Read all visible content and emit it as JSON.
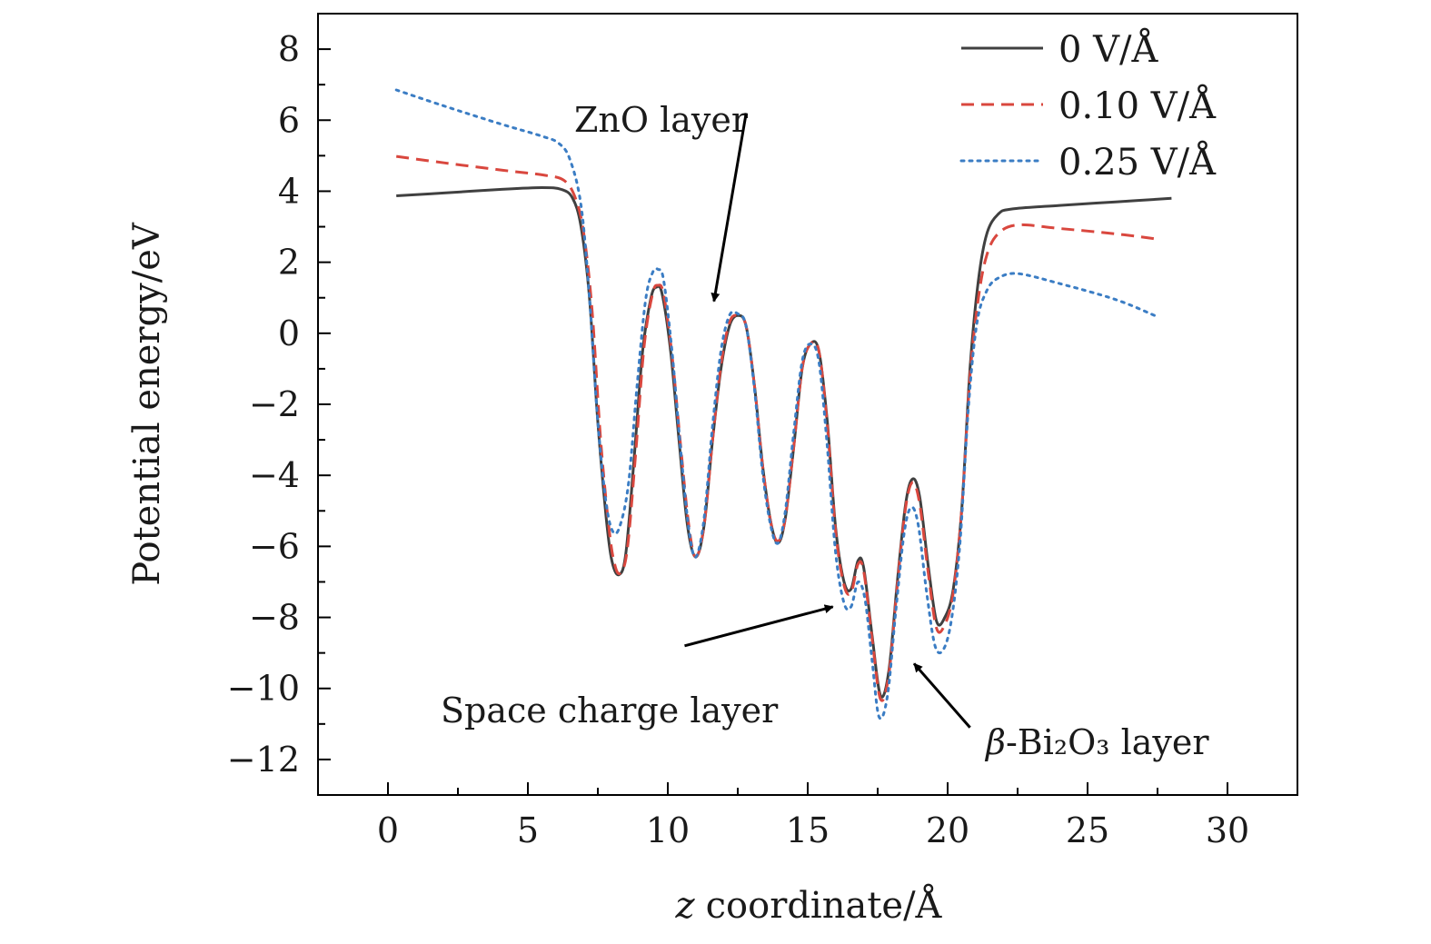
{
  "chart_data": {
    "type": "line",
    "xlabel": "coordinate/Å",
    "xlabel_italic_prefix": "z",
    "ylabel": "Potential energy/eV",
    "xlim": [
      -2.5,
      32.5
    ],
    "ylim": [
      -13,
      9
    ],
    "xticks": [
      0,
      5,
      10,
      15,
      20,
      25,
      30
    ],
    "yticks": [
      8,
      6,
      4,
      2,
      0,
      -2,
      -4,
      -6,
      -8,
      -10,
      -12
    ],
    "ytick_labels": [
      "8",
      "6",
      "4",
      "2",
      "0",
      "−2",
      "−4",
      "−6",
      "−8",
      "−10",
      "−12"
    ],
    "legend_position": "top-right",
    "series": [
      {
        "name": "0 V/Å",
        "color": "#404040",
        "dash": "solid",
        "points": [
          [
            0.3,
            3.87
          ],
          [
            2,
            3.95
          ],
          [
            4,
            4.05
          ],
          [
            5.5,
            4.1
          ],
          [
            6.2,
            4.05
          ],
          [
            6.6,
            3.8
          ],
          [
            6.9,
            3.0
          ],
          [
            7.2,
            1.0
          ],
          [
            7.5,
            -2.5
          ],
          [
            7.8,
            -5.2
          ],
          [
            8.0,
            -6.4
          ],
          [
            8.25,
            -6.8
          ],
          [
            8.5,
            -6.2
          ],
          [
            8.8,
            -3.5
          ],
          [
            9.1,
            -0.5
          ],
          [
            9.4,
            1.0
          ],
          [
            9.6,
            1.3
          ],
          [
            9.8,
            1.1
          ],
          [
            10.1,
            -0.5
          ],
          [
            10.4,
            -3.0
          ],
          [
            10.7,
            -5.4
          ],
          [
            11.0,
            -6.3
          ],
          [
            11.3,
            -5.4
          ],
          [
            11.6,
            -3.0
          ],
          [
            11.9,
            -1.0
          ],
          [
            12.2,
            0.2
          ],
          [
            12.5,
            0.5
          ],
          [
            12.8,
            0.2
          ],
          [
            13.1,
            -1.5
          ],
          [
            13.4,
            -3.8
          ],
          [
            13.7,
            -5.4
          ],
          [
            13.95,
            -5.9
          ],
          [
            14.2,
            -5.2
          ],
          [
            14.5,
            -3.2
          ],
          [
            14.8,
            -1.0
          ],
          [
            15.1,
            -0.3
          ],
          [
            15.4,
            -0.5
          ],
          [
            15.7,
            -2.5
          ],
          [
            16.0,
            -5.5
          ],
          [
            16.3,
            -7.0
          ],
          [
            16.55,
            -7.2
          ],
          [
            16.8,
            -6.4
          ],
          [
            17.0,
            -6.6
          ],
          [
            17.3,
            -8.5
          ],
          [
            17.6,
            -10.2
          ],
          [
            17.9,
            -9.5
          ],
          [
            18.2,
            -7.0
          ],
          [
            18.5,
            -4.8
          ],
          [
            18.75,
            -4.1
          ],
          [
            19.0,
            -4.6
          ],
          [
            19.3,
            -6.5
          ],
          [
            19.6,
            -8.1
          ],
          [
            19.9,
            -8.0
          ],
          [
            20.2,
            -7.2
          ],
          [
            20.5,
            -5.0
          ],
          [
            20.8,
            -1.0
          ],
          [
            21.1,
            1.5
          ],
          [
            21.4,
            2.8
          ],
          [
            21.8,
            3.35
          ],
          [
            22.3,
            3.5
          ],
          [
            24,
            3.6
          ],
          [
            26,
            3.7
          ],
          [
            28,
            3.8
          ]
        ]
      },
      {
        "name": "0.10 V/Å",
        "color": "#d9473e",
        "dash": "dashed",
        "points": [
          [
            0.3,
            4.98
          ],
          [
            2,
            4.8
          ],
          [
            4,
            4.6
          ],
          [
            5.6,
            4.45
          ],
          [
            6.3,
            4.3
          ],
          [
            6.7,
            3.8
          ],
          [
            7.0,
            2.8
          ],
          [
            7.3,
            0.6
          ],
          [
            7.6,
            -3.0
          ],
          [
            7.9,
            -5.5
          ],
          [
            8.1,
            -6.5
          ],
          [
            8.3,
            -6.75
          ],
          [
            8.55,
            -6.1
          ],
          [
            8.85,
            -3.4
          ],
          [
            9.15,
            -0.4
          ],
          [
            9.45,
            1.1
          ],
          [
            9.65,
            1.35
          ],
          [
            9.85,
            1.1
          ],
          [
            10.15,
            -0.6
          ],
          [
            10.45,
            -3.1
          ],
          [
            10.75,
            -5.4
          ],
          [
            11.0,
            -6.3
          ],
          [
            11.3,
            -5.4
          ],
          [
            11.6,
            -3.0
          ],
          [
            11.9,
            -0.9
          ],
          [
            12.2,
            0.3
          ],
          [
            12.5,
            0.5
          ],
          [
            12.8,
            0.2
          ],
          [
            13.1,
            -1.5
          ],
          [
            13.4,
            -3.8
          ],
          [
            13.7,
            -5.4
          ],
          [
            13.95,
            -5.85
          ],
          [
            14.2,
            -5.2
          ],
          [
            14.5,
            -3.2
          ],
          [
            14.8,
            -1.0
          ],
          [
            15.1,
            -0.3
          ],
          [
            15.4,
            -0.5
          ],
          [
            15.7,
            -2.6
          ],
          [
            16.0,
            -5.6
          ],
          [
            16.3,
            -7.1
          ],
          [
            16.55,
            -7.3
          ],
          [
            16.8,
            -6.5
          ],
          [
            17.0,
            -6.7
          ],
          [
            17.3,
            -8.6
          ],
          [
            17.6,
            -10.3
          ],
          [
            17.9,
            -9.6
          ],
          [
            18.2,
            -7.1
          ],
          [
            18.5,
            -4.9
          ],
          [
            18.75,
            -4.2
          ],
          [
            19.0,
            -4.8
          ],
          [
            19.3,
            -6.7
          ],
          [
            19.6,
            -8.3
          ],
          [
            19.9,
            -8.2
          ],
          [
            20.2,
            -7.3
          ],
          [
            20.5,
            -5.0
          ],
          [
            20.8,
            -1.2
          ],
          [
            21.1,
            1.0
          ],
          [
            21.4,
            2.2
          ],
          [
            21.8,
            2.8
          ],
          [
            22.5,
            3.05
          ],
          [
            24,
            2.95
          ],
          [
            26,
            2.8
          ],
          [
            27.5,
            2.65
          ]
        ]
      },
      {
        "name": "0.25 V/Å",
        "color": "#3b7dc4",
        "dash": "dotted",
        "points": [
          [
            0.3,
            6.85
          ],
          [
            2,
            6.4
          ],
          [
            4,
            5.9
          ],
          [
            5.5,
            5.55
          ],
          [
            6.1,
            5.35
          ],
          [
            6.5,
            4.9
          ],
          [
            6.9,
            3.6
          ],
          [
            7.2,
            1.0
          ],
          [
            7.5,
            -2.5
          ],
          [
            7.8,
            -4.8
          ],
          [
            8.05,
            -5.6
          ],
          [
            8.3,
            -5.4
          ],
          [
            8.6,
            -4.2
          ],
          [
            8.9,
            -1.5
          ],
          [
            9.2,
            0.9
          ],
          [
            9.45,
            1.7
          ],
          [
            9.65,
            1.8
          ],
          [
            9.85,
            1.5
          ],
          [
            10.15,
            -0.5
          ],
          [
            10.45,
            -3.2
          ],
          [
            10.75,
            -5.5
          ],
          [
            11.0,
            -6.3
          ],
          [
            11.3,
            -5.2
          ],
          [
            11.6,
            -2.6
          ],
          [
            11.9,
            -0.5
          ],
          [
            12.2,
            0.5
          ],
          [
            12.5,
            0.55
          ],
          [
            12.8,
            0.2
          ],
          [
            13.1,
            -1.6
          ],
          [
            13.4,
            -4.0
          ],
          [
            13.7,
            -5.5
          ],
          [
            13.95,
            -5.9
          ],
          [
            14.2,
            -5.0
          ],
          [
            14.5,
            -2.8
          ],
          [
            14.8,
            -0.8
          ],
          [
            15.1,
            -0.3
          ],
          [
            15.4,
            -0.8
          ],
          [
            15.7,
            -3.2
          ],
          [
            16.0,
            -6.2
          ],
          [
            16.3,
            -7.6
          ],
          [
            16.55,
            -7.7
          ],
          [
            16.8,
            -7.0
          ],
          [
            17.05,
            -7.5
          ],
          [
            17.3,
            -9.2
          ],
          [
            17.55,
            -10.8
          ],
          [
            17.85,
            -10.2
          ],
          [
            18.15,
            -7.8
          ],
          [
            18.45,
            -5.6
          ],
          [
            18.7,
            -4.9
          ],
          [
            18.95,
            -5.4
          ],
          [
            19.25,
            -7.3
          ],
          [
            19.55,
            -8.8
          ],
          [
            19.85,
            -8.9
          ],
          [
            20.15,
            -8.0
          ],
          [
            20.45,
            -5.8
          ],
          [
            20.75,
            -2.0
          ],
          [
            21.05,
            0.3
          ],
          [
            21.4,
            1.2
          ],
          [
            21.8,
            1.55
          ],
          [
            22.5,
            1.68
          ],
          [
            24,
            1.4
          ],
          [
            26,
            0.95
          ],
          [
            27.4,
            0.5
          ]
        ]
      }
    ],
    "annotations": [
      {
        "text": "ZnO layer",
        "italic_prefix": "",
        "arrow_from": [
          12.8,
          6.2
        ],
        "arrow_to": [
          11.65,
          0.9
        ]
      },
      {
        "text": "Space charge layer",
        "italic_prefix": "",
        "arrow_from": [
          10.6,
          -8.8
        ],
        "arrow_to": [
          15.9,
          -7.7
        ]
      },
      {
        "text": "-Bi₂O₃ layer",
        "italic_prefix": "β",
        "arrow_from": [
          20.8,
          -11.1
        ],
        "arrow_to": [
          18.8,
          -9.3
        ]
      }
    ]
  }
}
